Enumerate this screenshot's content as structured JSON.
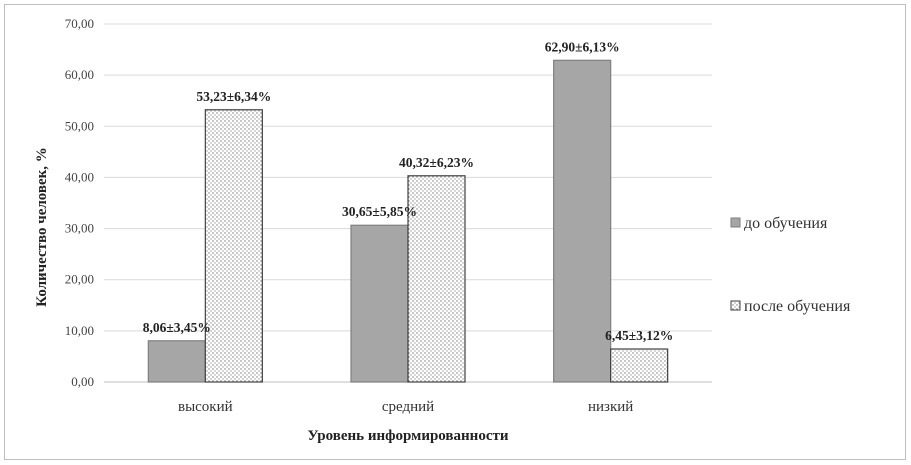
{
  "chart_data": {
    "type": "bar",
    "categories": [
      "высокий",
      "средний",
      "низкий"
    ],
    "series": [
      {
        "name": "до обучения",
        "values": [
          8.06,
          30.65,
          62.9
        ],
        "labels": [
          "8,06±3,45%",
          "30,65±5,85%",
          "62,90±6,13%"
        ],
        "color": "#a6a6a6",
        "fill": "solid"
      },
      {
        "name": "после обучения",
        "values": [
          53.23,
          40.32,
          6.45
        ],
        "labels": [
          "53,23±6,34%",
          "40,32±6,23%",
          "6,45±3,12%"
        ],
        "color": "#ffffff",
        "fill": "dotted"
      }
    ],
    "xlabel": "Уровень информированности",
    "ylabel": "Количество человек, %",
    "ylim": [
      0,
      70
    ],
    "yticks": [
      "0,00",
      "10,00",
      "20,00",
      "30,00",
      "40,00",
      "50,00",
      "60,00",
      "70,00"
    ],
    "grid": true,
    "legend_position": "right"
  }
}
